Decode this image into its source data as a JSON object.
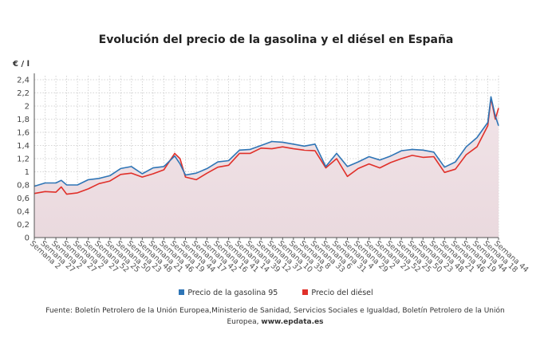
{
  "chart_data": {
    "type": "line",
    "title": "Evolución del precio de la gasolina y el diésel en España",
    "ylabel": "€ / l",
    "xlabel": "",
    "ylim": [
      0,
      2.4
    ],
    "yticks": [
      "0",
      "0,2",
      "0,4",
      "0,6",
      "0,8",
      "1",
      "1,2",
      "1,4",
      "1,6",
      "1,8",
      "2",
      "2,2",
      "2,4"
    ],
    "grid": true,
    "legend_position": "bottom",
    "categories": [
      "Semana 2",
      "Semana 27",
      "Semana 2",
      "Semana 27",
      "Semana 2",
      "Semana 27",
      "Semana 52",
      "Semana 25",
      "Semana 50",
      "Semana 23",
      "Semana 48",
      "Semana 21",
      "Semana 46",
      "Semana 19",
      "Semana 44",
      "Semana 17",
      "Semana 42",
      "Semana 16",
      "Semana 41",
      "Semana 14",
      "Semana 39",
      "Semana 12",
      "Semana 37",
      "Semana 10",
      "Semana 35",
      "Semana 8",
      "Semana 33",
      "Semana 6",
      "Semana 31",
      "Semana 4",
      "Semana 29",
      "Semana 2",
      "Semana 27",
      "Semana 52",
      "Semana 25",
      "Semana 50",
      "Semana 23",
      "Semana 48",
      "Semana 21",
      "Semana 46",
      "Semana 19",
      "Semana 44",
      "Semana 18",
      "Semana 44"
    ],
    "x": [
      0,
      1,
      2,
      2.5,
      3,
      4,
      5,
      6,
      7,
      8,
      9,
      10,
      11,
      12,
      13,
      13.5,
      14,
      15,
      16,
      17,
      18,
      19,
      20,
      21,
      22,
      23,
      24,
      25,
      26,
      27,
      28,
      29,
      30,
      31,
      32,
      33,
      34,
      35,
      36,
      37,
      38,
      39,
      40,
      41,
      42,
      42.3,
      42.7,
      43
    ],
    "series": [
      {
        "name": "Precio de la gasolina 95",
        "color": "#2e75b6",
        "values": [
          0.78,
          0.83,
          0.83,
          0.87,
          0.8,
          0.8,
          0.88,
          0.9,
          0.94,
          1.05,
          1.08,
          0.97,
          1.06,
          1.08,
          1.24,
          1.12,
          0.95,
          0.98,
          1.05,
          1.15,
          1.17,
          1.33,
          1.34,
          1.4,
          1.46,
          1.45,
          1.42,
          1.39,
          1.42,
          1.08,
          1.28,
          1.08,
          1.15,
          1.23,
          1.18,
          1.24,
          1.32,
          1.34,
          1.33,
          1.3,
          1.07,
          1.15,
          1.38,
          1.52,
          1.75,
          2.14,
          1.85,
          1.7
        ]
      },
      {
        "name": "Precio del diésel",
        "color": "#e0302a",
        "values": [
          0.67,
          0.7,
          0.69,
          0.77,
          0.66,
          0.68,
          0.74,
          0.82,
          0.86,
          0.96,
          0.98,
          0.92,
          0.97,
          1.03,
          1.28,
          1.2,
          0.92,
          0.88,
          0.98,
          1.07,
          1.1,
          1.28,
          1.28,
          1.36,
          1.35,
          1.38,
          1.35,
          1.33,
          1.32,
          1.06,
          1.2,
          0.93,
          1.05,
          1.12,
          1.06,
          1.14,
          1.2,
          1.25,
          1.22,
          1.23,
          0.99,
          1.04,
          1.26,
          1.38,
          1.7,
          2.12,
          1.8,
          1.97
        ]
      }
    ],
    "source_label": "Fuente: Boletín Petrolero de la Unión Europea,Ministerio de Sanidad, Servicios Sociales e Igualdad, Boletín Petrolero de la Unión Europea,",
    "source_link": "www.epdata.es"
  }
}
